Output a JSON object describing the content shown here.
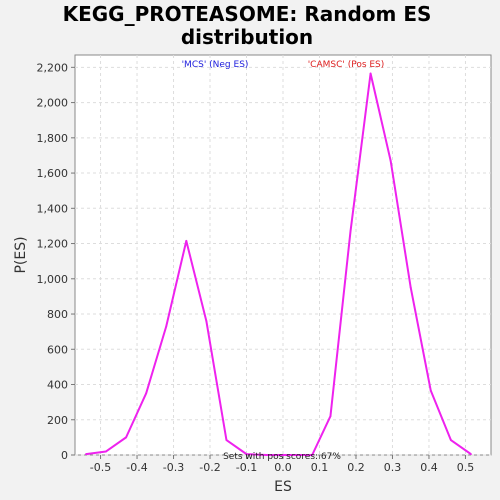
{
  "chart_data": {
    "type": "line",
    "title_line1": "KEGG_PROTEASOME: Random ES",
    "title_line2": "distribution",
    "xlabel": "ES",
    "ylabel": "P(ES)",
    "xlim": [
      -0.57,
      0.57
    ],
    "ylim": [
      0,
      2270
    ],
    "xticks": [
      -0.5,
      -0.4,
      -0.3,
      -0.2,
      -0.1,
      0.0,
      0.1,
      0.2,
      0.3,
      0.4,
      0.5
    ],
    "xtick_labels": [
      "-0.5",
      "-0.4",
      "-0.3",
      "-0.2",
      "-0.1",
      "0.0",
      "0.1",
      "0.2",
      "0.3",
      "0.4",
      "0.5"
    ],
    "yticks": [
      0,
      200,
      400,
      600,
      800,
      1000,
      1200,
      1400,
      1600,
      1800,
      2000,
      2200
    ],
    "ytick_labels": [
      "0",
      "200",
      "400",
      "600",
      "800",
      "1,000",
      "1,200",
      "1,400",
      "1,600",
      "1,800",
      "2,000",
      "2,200"
    ],
    "grid": true,
    "series": [
      {
        "color": "#ee22ee",
        "x": [
          -0.54,
          -0.485,
          -0.43,
          -0.375,
          -0.32,
          -0.265,
          -0.21,
          -0.155,
          -0.1,
          -0.045,
          0.01,
          0.065,
          0.08,
          0.13,
          0.185,
          0.24,
          0.295,
          0.35,
          0.405,
          0.46,
          0.515
        ],
        "y": [
          5,
          20,
          100,
          350,
          730,
          1215,
          760,
          85,
          5,
          0,
          0,
          0,
          0,
          220,
          1270,
          2165,
          1670,
          950,
          365,
          85,
          5
        ]
      }
    ],
    "annotations": [
      {
        "text": "'MCS' (Neg ES)",
        "color": "#2020dd"
      },
      {
        "text": "'CAMSC' (Pos ES)",
        "color": "#dd2020"
      },
      {
        "text": "Sets with pos scores: 67%",
        "color": "#222222"
      }
    ]
  }
}
